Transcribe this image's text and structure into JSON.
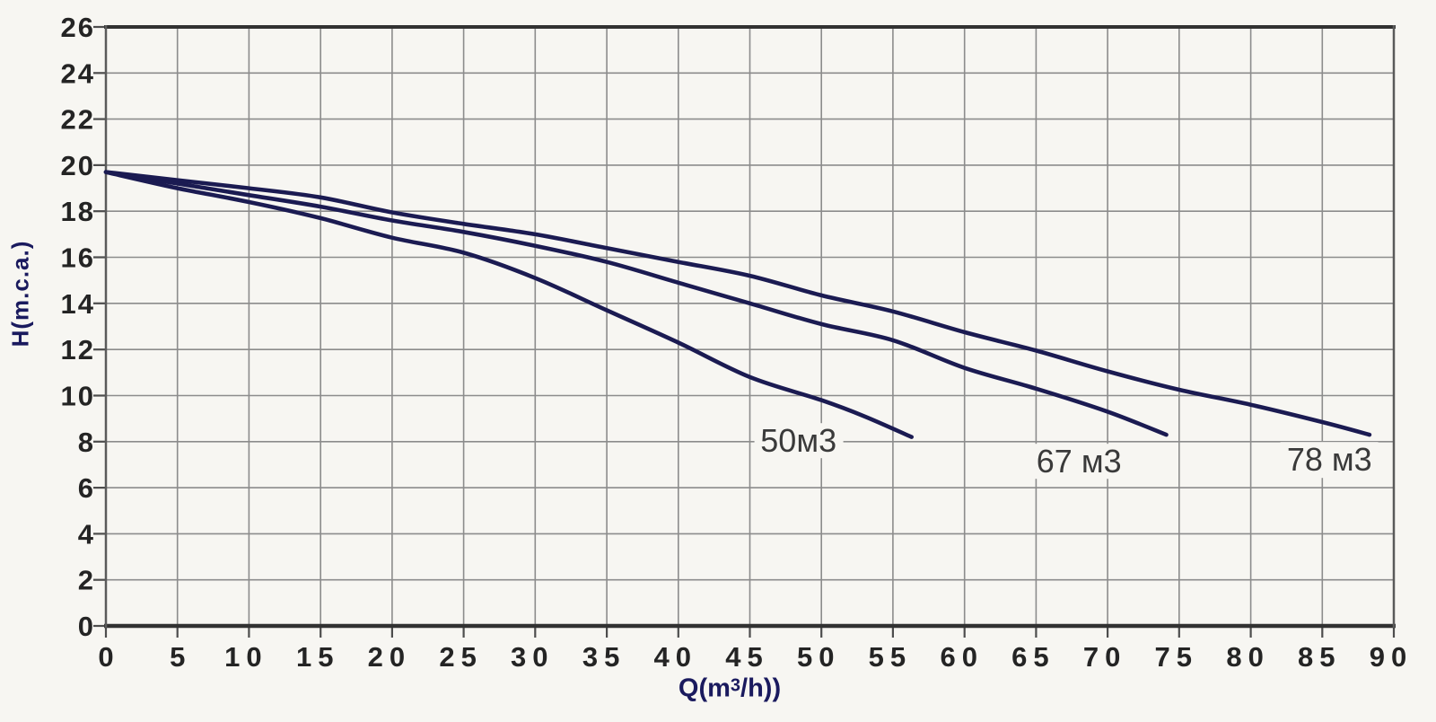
{
  "chart_data": {
    "type": "line",
    "title": "",
    "xlabel": "Q(m3/h))",
    "xlabel_parts": {
      "prefix": "Q(m",
      "sup": "3",
      "suffix": "/h))"
    },
    "ylabel": "H(m.c.a.)",
    "xlim": [
      0,
      90
    ],
    "ylim": [
      0,
      26
    ],
    "x_tick_step": 5,
    "y_tick_step": 2,
    "x_ticks": [
      0,
      5,
      10,
      15,
      20,
      25,
      30,
      35,
      40,
      45,
      50,
      55,
      60,
      65,
      70,
      75,
      80,
      85,
      90
    ],
    "y_ticks": [
      0,
      2,
      4,
      6,
      8,
      10,
      12,
      14,
      16,
      18,
      20,
      22,
      24,
      26
    ],
    "grid": true,
    "legend_position": "none",
    "series": [
      {
        "name": "50м3",
        "label_pos": {
          "x": 48.4,
          "y": 8.05
        },
        "points": [
          [
            0,
            19.7
          ],
          [
            5,
            19.0
          ],
          [
            10,
            18.4
          ],
          [
            15,
            17.7
          ],
          [
            20,
            16.85
          ],
          [
            25,
            16.2
          ],
          [
            30,
            15.1
          ],
          [
            35,
            13.7
          ],
          [
            40,
            12.3
          ],
          [
            45,
            10.8
          ],
          [
            50,
            9.8
          ],
          [
            53,
            9.1
          ],
          [
            56.3,
            8.2
          ]
        ]
      },
      {
        "name": "67 м3",
        "label_pos": {
          "x": 68.0,
          "y": 7.15
        },
        "points": [
          [
            0,
            19.7
          ],
          [
            5,
            19.2
          ],
          [
            10,
            18.7
          ],
          [
            15,
            18.2
          ],
          [
            20,
            17.6
          ],
          [
            25,
            17.1
          ],
          [
            30,
            16.5
          ],
          [
            35,
            15.8
          ],
          [
            40,
            14.9
          ],
          [
            45,
            14.0
          ],
          [
            50,
            13.1
          ],
          [
            55,
            12.4
          ],
          [
            60,
            11.2
          ],
          [
            65,
            10.3
          ],
          [
            70,
            9.3
          ],
          [
            74.1,
            8.3
          ]
        ]
      },
      {
        "name": "78 м3",
        "label_pos": {
          "x": 85.5,
          "y": 7.2
        },
        "points": [
          [
            0,
            19.7
          ],
          [
            5,
            19.35
          ],
          [
            10,
            19.0
          ],
          [
            15,
            18.6
          ],
          [
            20,
            17.95
          ],
          [
            25,
            17.45
          ],
          [
            30,
            17.0
          ],
          [
            35,
            16.4
          ],
          [
            40,
            15.8
          ],
          [
            45,
            15.2
          ],
          [
            50,
            14.35
          ],
          [
            55,
            13.65
          ],
          [
            60,
            12.75
          ],
          [
            65,
            11.95
          ],
          [
            70,
            11.05
          ],
          [
            75,
            10.25
          ],
          [
            80,
            9.6
          ],
          [
            85,
            8.85
          ],
          [
            88.3,
            8.3
          ]
        ]
      }
    ],
    "colors": {
      "curve": "#1b1b52",
      "grid": "#8c8c8c",
      "frame_dark": "#323232",
      "frame_side": "#5a5a5a",
      "tick": "#4d4d4d",
      "tick_text": "#242424",
      "axis_label": "#1a1a5e",
      "series_label": "#3a3a3a",
      "background": "#f7f6f2"
    }
  }
}
